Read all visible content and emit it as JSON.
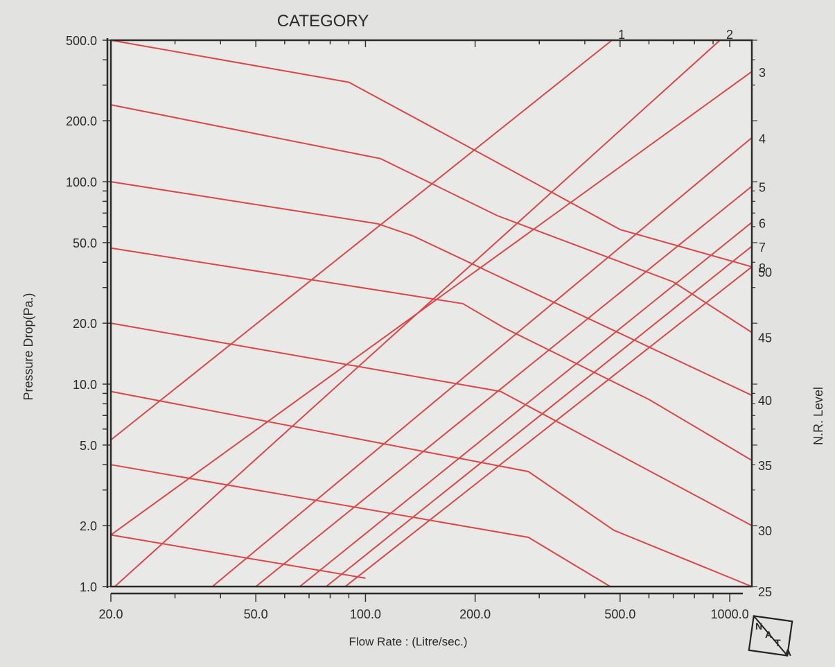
{
  "chart_data": {
    "type": "line",
    "title": "CATEGORY",
    "xlabel": "Flow Rate :  (Litre/sec.)",
    "ylabel": "Pressure Drop(Pa.)",
    "y2label": "N.R. Level",
    "x_scale": "log",
    "y_scale": "log",
    "xlim": [
      20,
      1150
    ],
    "ylim": [
      1,
      500
    ],
    "x_ticks": [
      "20.0",
      "50.0",
      "100.0",
      "200.0",
      "500.0",
      "1000.0"
    ],
    "y_ticks": [
      "1.0",
      "2.0",
      "5.0",
      "10.0",
      "20.0",
      "50.0",
      "100.0",
      "200.0",
      "500.0"
    ],
    "line_color": "#dc4646",
    "category_lines": [
      {
        "label": "1",
        "points": [
          [
            20,
            5.3
          ],
          [
            475,
            500
          ]
        ]
      },
      {
        "label": "2",
        "points": [
          [
            20.5,
            1.0
          ],
          [
            940,
            500
          ]
        ]
      },
      {
        "label": "3",
        "points": [
          [
            20,
            1.8
          ],
          [
            1150,
            350
          ]
        ]
      },
      {
        "label": "4",
        "points": [
          [
            38,
            1.0
          ],
          [
            1150,
            165
          ]
        ]
      },
      {
        "label": "5",
        "points": [
          [
            50,
            1.0
          ],
          [
            1150,
            95
          ]
        ]
      },
      {
        "label": "6",
        "points": [
          [
            66,
            1.0
          ],
          [
            1150,
            63
          ]
        ]
      },
      {
        "label": "7",
        "points": [
          [
            78,
            1.0
          ],
          [
            1150,
            48
          ]
        ]
      },
      {
        "label": "8",
        "points": [
          [
            88,
            1.0
          ],
          [
            1150,
            38
          ]
        ]
      }
    ],
    "nr_levels": [
      {
        "label": "50",
        "points": [
          [
            20,
            500
          ],
          [
            90,
            310
          ],
          [
            190,
            150
          ],
          [
            500,
            58
          ],
          [
            1150,
            38
          ]
        ]
      },
      {
        "label": "45",
        "points": [
          [
            20,
            240
          ],
          [
            110,
            130
          ],
          [
            230,
            68
          ],
          [
            700,
            32
          ],
          [
            1150,
            18
          ]
        ]
      },
      {
        "label": "40",
        "points": [
          [
            20,
            100
          ],
          [
            108,
            62
          ],
          [
            135,
            54
          ],
          [
            250,
            32
          ],
          [
            1150,
            8.8
          ]
        ]
      },
      {
        "label": "35",
        "points": [
          [
            20,
            47
          ],
          [
            185,
            25
          ],
          [
            240,
            19
          ],
          [
            600,
            8.4
          ],
          [
            1150,
            4.2
          ]
        ]
      },
      {
        "label": "30",
        "points": [
          [
            20,
            20
          ],
          [
            235,
            9.2
          ],
          [
            1150,
            2.0
          ]
        ]
      },
      {
        "label": "25",
        "points": [
          [
            20,
            9.2
          ],
          [
            280,
            3.7
          ],
          [
            480,
            1.9
          ],
          [
            1150,
            1.0
          ]
        ]
      },
      {
        "label": "",
        "points": [
          [
            20,
            4.0
          ],
          [
            280,
            1.75
          ],
          [
            470,
            1.0
          ]
        ]
      },
      {
        "label": "",
        "points": [
          [
            20,
            1.8
          ],
          [
            100,
            1.1
          ]
        ]
      }
    ]
  },
  "logo": {
    "text": "NATA",
    "letters": [
      "N",
      "A",
      "T",
      "A"
    ]
  }
}
